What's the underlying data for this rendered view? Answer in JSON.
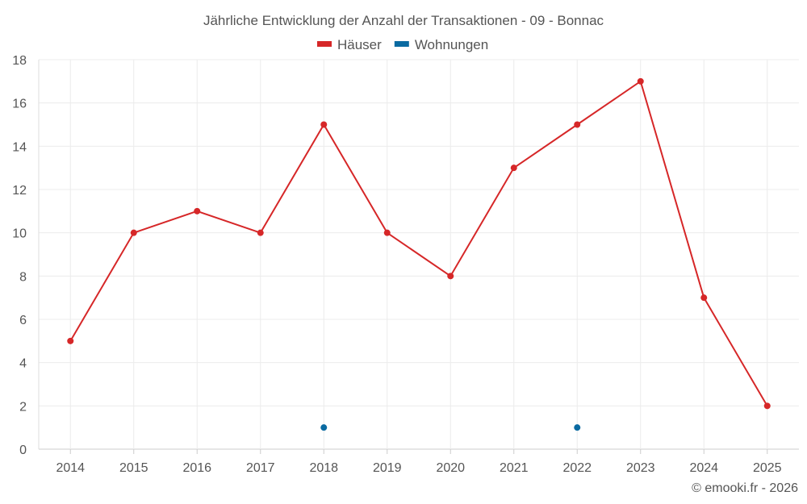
{
  "chart_data": {
    "type": "line",
    "title": "Jährliche Entwicklung der Anzahl der Transaktionen - 09 - Bonnac",
    "categories": [
      "2014",
      "2015",
      "2016",
      "2017",
      "2018",
      "2019",
      "2020",
      "2021",
      "2022",
      "2023",
      "2024",
      "2025"
    ],
    "series": [
      {
        "name": "Häuser",
        "color": "#d62728",
        "values": [
          5,
          10,
          11,
          10,
          15,
          10,
          8,
          13,
          15,
          17,
          7,
          2
        ]
      },
      {
        "name": "Wohnungen",
        "color": "#0a6aa1",
        "values": [
          null,
          null,
          null,
          null,
          1,
          null,
          null,
          null,
          1,
          null,
          null,
          null
        ]
      }
    ],
    "ylim": [
      0,
      18
    ],
    "yticks": [
      0,
      2,
      4,
      6,
      8,
      10,
      12,
      14,
      16,
      18
    ],
    "grid": true,
    "legend": "top-center",
    "xlabel": "",
    "ylabel": ""
  },
  "credit": "© emooki.fr - 2026"
}
